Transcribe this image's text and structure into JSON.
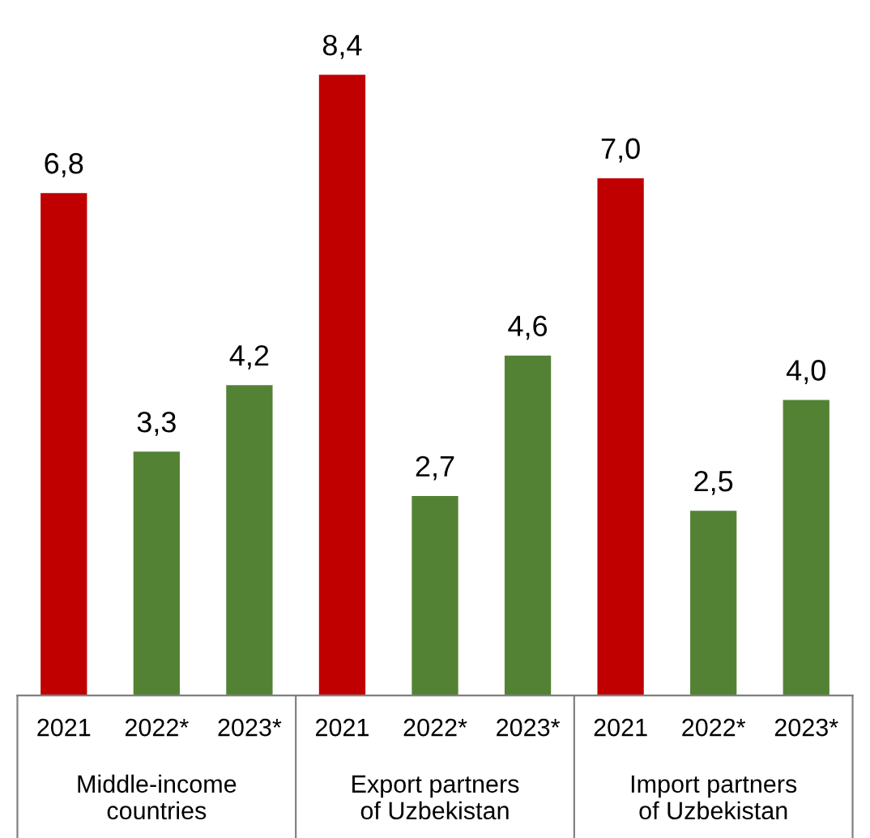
{
  "chart_data": {
    "type": "bar",
    "categories": [
      "2021",
      "2022*",
      "2023*",
      "2021",
      "2022*",
      "2023*",
      "2021",
      "2022*",
      "2023*"
    ],
    "values": [
      6.8,
      3.3,
      4.2,
      8.4,
      2.7,
      4.6,
      7.0,
      2.5,
      4.0
    ],
    "colors": [
      "#c00000",
      "#548235",
      "#548235",
      "#c00000",
      "#548235",
      "#548235",
      "#c00000",
      "#548235",
      "#548235"
    ],
    "value_labels": [
      "6,8",
      "3,3",
      "4,2",
      "8,4",
      "2,7",
      "4,6",
      "7,0",
      "2,5",
      "4,0"
    ],
    "annotations": [
      "Middle-income countries",
      "Export partners of Uzbekistan",
      "Import partners of Uzbekistan"
    ],
    "grid": false,
    "legend": false
  }
}
